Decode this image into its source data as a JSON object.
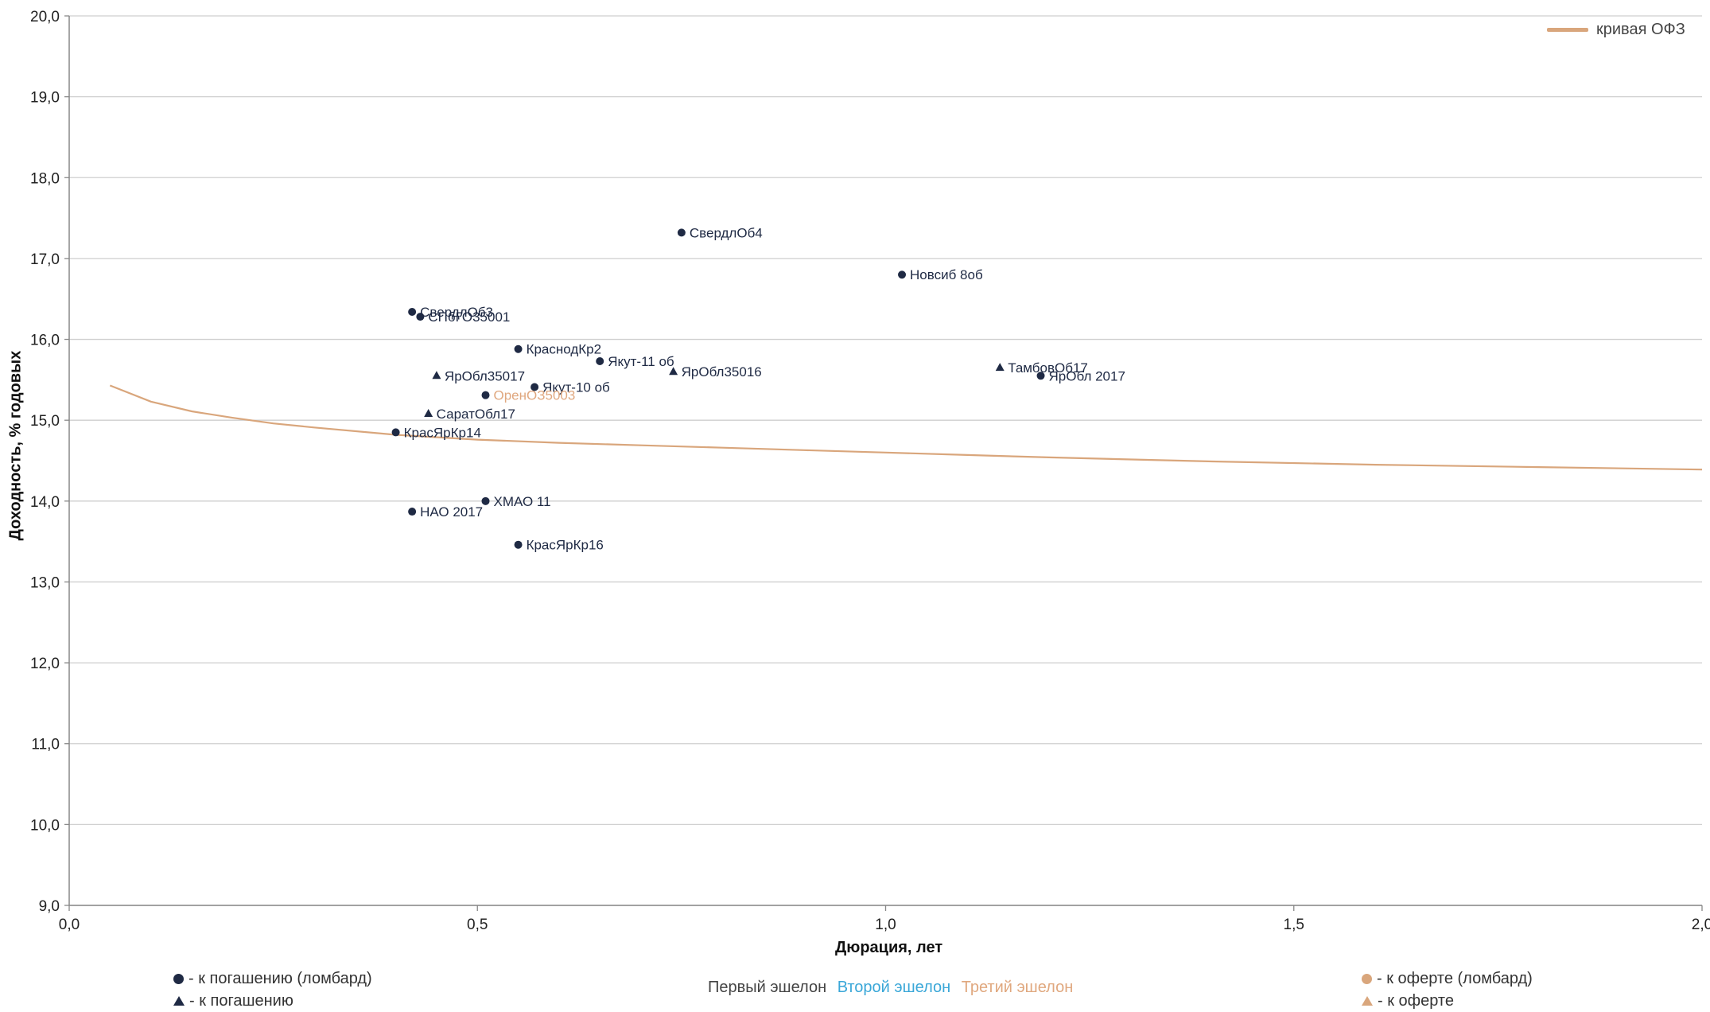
{
  "chart_data": {
    "type": "scatter",
    "xlabel": "Дюрация, лет",
    "ylabel": "Доходность, % годовых",
    "xlim": [
      0,
      2
    ],
    "ylim": [
      9,
      20
    ],
    "x_ticks": [
      "0,0",
      "0,5",
      "1,0",
      "1,5",
      "2,0"
    ],
    "y_ticks": [
      "9,0",
      "10,0",
      "11,0",
      "12,0",
      "13,0",
      "14,0",
      "15,0",
      "16,0",
      "17,0",
      "18,0",
      "19,0",
      "20,0"
    ],
    "grid": "horizontal",
    "legend_placement": "top-right",
    "curve": {
      "name": "кривая ОФЗ",
      "color": "#d9a67c",
      "x": [
        0.05,
        0.1,
        0.15,
        0.2,
        0.25,
        0.3,
        0.4,
        0.5,
        0.6,
        0.7,
        0.8,
        0.9,
        1.0,
        1.1,
        1.2,
        1.4,
        1.6,
        1.8,
        2.0
      ],
      "y": [
        15.43,
        15.23,
        15.11,
        15.03,
        14.96,
        14.91,
        14.82,
        14.76,
        14.72,
        14.69,
        14.66,
        14.63,
        14.6,
        14.57,
        14.54,
        14.49,
        14.45,
        14.42,
        14.39
      ]
    },
    "points": [
      {
        "label": "СвердлОб4",
        "x": 0.75,
        "y": 17.32,
        "marker": "circle",
        "echelon": "first"
      },
      {
        "label": "Новсиб 8об",
        "x": 1.02,
        "y": 16.8,
        "marker": "circle",
        "echelon": "first"
      },
      {
        "label": "СвердлОб3",
        "x": 0.42,
        "y": 16.34,
        "marker": "circle",
        "echelon": "first"
      },
      {
        "label": "СПбГО35001",
        "x": 0.43,
        "y": 16.28,
        "marker": "circle",
        "echelon": "first"
      },
      {
        "label": "КраснодКр2",
        "x": 0.55,
        "y": 15.88,
        "marker": "circle",
        "echelon": "first"
      },
      {
        "label": "Якут-11 об",
        "x": 0.65,
        "y": 15.73,
        "marker": "circle",
        "echelon": "first"
      },
      {
        "label": "ЯрОбл35016",
        "x": 0.74,
        "y": 15.6,
        "marker": "triangle",
        "echelon": "first"
      },
      {
        "label": "ЯрОбл35017",
        "x": 0.45,
        "y": 15.55,
        "marker": "triangle",
        "echelon": "first"
      },
      {
        "label": "Якут-10 об",
        "x": 0.57,
        "y": 15.41,
        "marker": "circle",
        "echelon": "first"
      },
      {
        "label": "ОренОЗ5003",
        "x": 0.51,
        "y": 15.31,
        "marker": "circle",
        "echelon": "first",
        "label_color": "#e0a87f"
      },
      {
        "label": "ТамбовОб17",
        "x": 1.14,
        "y": 15.65,
        "marker": "triangle",
        "echelon": "first"
      },
      {
        "label": "ЯрОбл 2017",
        "x": 1.19,
        "y": 15.55,
        "marker": "circle",
        "echelon": "first"
      },
      {
        "label": "СаратОбл17",
        "x": 0.44,
        "y": 15.08,
        "marker": "triangle",
        "echelon": "first"
      },
      {
        "label": "КрасЯрКр14",
        "x": 0.4,
        "y": 14.85,
        "marker": "circle",
        "echelon": "first"
      },
      {
        "label": "ХМАО 11",
        "x": 0.51,
        "y": 14.0,
        "marker": "circle",
        "echelon": "first"
      },
      {
        "label": "НАО 2017",
        "x": 0.42,
        "y": 13.87,
        "marker": "circle",
        "echelon": "first"
      },
      {
        "label": "КрасЯрКр16",
        "x": 0.55,
        "y": 13.46,
        "marker": "circle",
        "echelon": "first"
      }
    ]
  },
  "legend": {
    "left": [
      {
        "symbol": "circle",
        "color": "#1f2a44",
        "text": "- к погашению (ломбард)"
      },
      {
        "symbol": "triangle",
        "color": "#1f2a44",
        "text": "- к погашению"
      }
    ],
    "right": [
      {
        "symbol": "circle",
        "color": "#d9a67c",
        "text": "- к оферте (ломбард)"
      },
      {
        "symbol": "triangle",
        "color": "#d9a67c",
        "text": "- к оферте"
      }
    ],
    "echelons": [
      {
        "text": "Первый эшелон",
        "color": "#444444"
      },
      {
        "text": "Второй эшелон",
        "color": "#3aa7d8"
      },
      {
        "text": "Третий эшелон",
        "color": "#e0a87f"
      }
    ]
  },
  "colors": {
    "point": "#1f2a44",
    "grid": "#cfcfcf",
    "axis": "#888888"
  }
}
